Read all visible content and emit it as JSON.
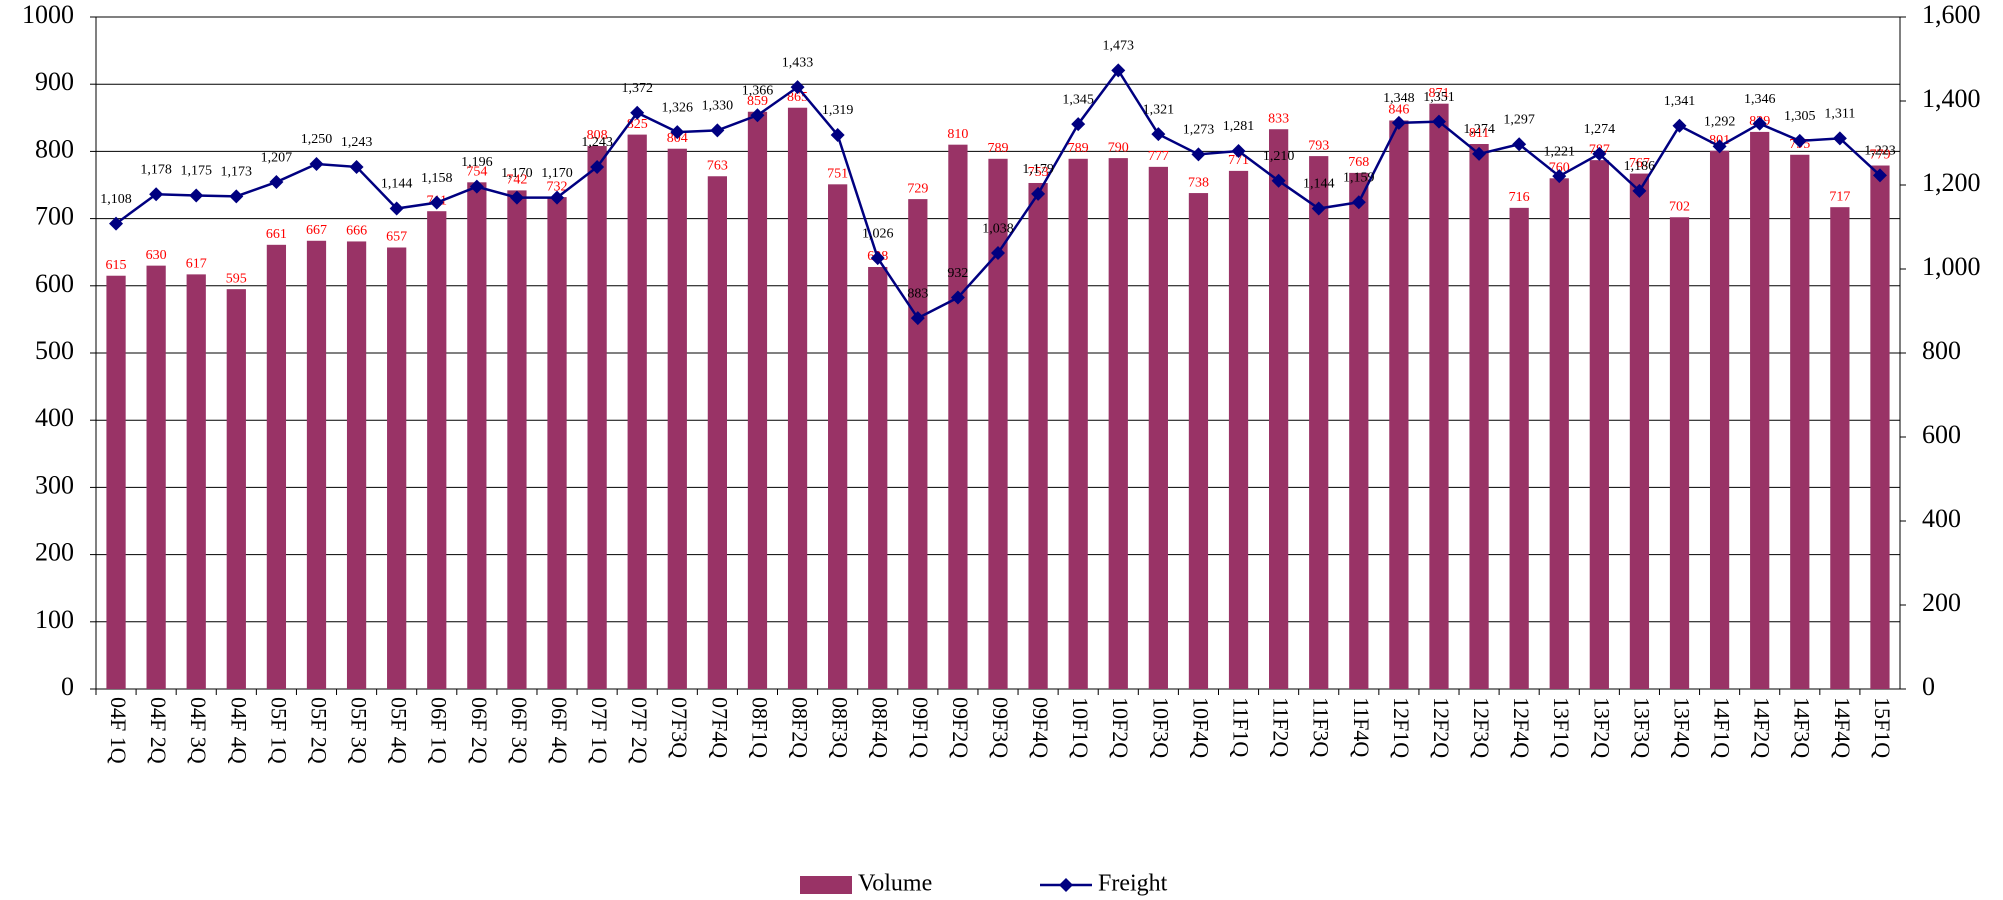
{
  "chart_data": {
    "type": "bar",
    "categories": [
      "04F 1Q",
      "04F 2Q",
      "04F 3Q",
      "04F 4Q",
      "05F 1Q",
      "05F 2Q",
      "05F 3Q",
      "05F 4Q",
      "06F 1Q",
      "06F 2Q",
      "06F 3Q",
      "06F 4Q",
      "07F 1Q",
      "07F 2Q",
      "07F3Q",
      "07F4Q",
      "08F1Q",
      "08F2Q",
      "08F3Q",
      "08F4Q",
      "09F1Q",
      "09F2Q",
      "09F3Q",
      "09F4Q",
      "10F1Q",
      "10F2Q",
      "10F3Q",
      "10F4Q",
      "11F1Q",
      "11F2Q",
      "11F3Q",
      "11F4Q",
      "12F1Q",
      "12F2Q",
      "12F3Q",
      "12F4Q",
      "13F1Q",
      "13F2Q",
      "13F3Q",
      "13F4Q",
      "14F1Q",
      "14F2Q",
      "14F3Q",
      "14F4Q",
      "15F1Q"
    ],
    "series": [
      {
        "name": "Volume",
        "type": "bar",
        "color": "#993366",
        "label_color": "#ff0000",
        "values": [
          615,
          630,
          617,
          595,
          661,
          667,
          666,
          657,
          711,
          754,
          742,
          732,
          808,
          825,
          804,
          763,
          859,
          865,
          751,
          628,
          729,
          810,
          789,
          753,
          789,
          790,
          777,
          738,
          771,
          833,
          793,
          768,
          846,
          871,
          811,
          716,
          760,
          787,
          767,
          702,
          801,
          829,
          795,
          717,
          779
        ]
      },
      {
        "name": "Freight",
        "type": "line",
        "axis": "y2",
        "color": "#000080",
        "label_color": "#000000",
        "values": [
          1108,
          1178,
          1175,
          1173,
          1207,
          1250,
          1243,
          1144,
          1158,
          1196,
          1170,
          1170,
          1243,
          1372,
          1326,
          1330,
          1366,
          1433,
          1319,
          1026,
          883,
          932,
          1038,
          1179,
          1345,
          1473,
          1321,
          1273,
          1281,
          1210,
          1144,
          1159,
          1348,
          1351,
          1274,
          1297,
          1221,
          1274,
          1186,
          1341,
          1292,
          1346,
          1305,
          1311,
          1223
        ],
        "value_labels": [
          "1,108",
          "1,178",
          "1,175",
          "1,173",
          "1,207",
          "1,250",
          "1,243",
          "1,144",
          "1,158",
          "1,196",
          "1,170",
          "1,170",
          "1,243",
          "1,372",
          "1,326",
          "1,330",
          "1,366",
          "1,433",
          "1,319",
          "1,026",
          "883",
          "932",
          "1,038",
          "1,179",
          "1,345",
          "1,473",
          "1,321",
          "1,273",
          "1,281",
          "1,210",
          "1,144",
          "1,159",
          "1,348",
          "1,351",
          "1,274",
          "1,297",
          "1,221",
          "1,274",
          "1,186",
          "1,341",
          "1,292",
          "1,346",
          "1,305",
          "1,311",
          "1,223"
        ]
      }
    ],
    "ylim": [
      0,
      1000
    ],
    "yticks": [
      0,
      100,
      200,
      300,
      400,
      500,
      600,
      700,
      800,
      900,
      1000
    ],
    "y2lim": [
      0,
      1600
    ],
    "y2ticks": [
      0,
      200,
      400,
      600,
      800,
      {
        "value": 1000,
        "label": "1,000"
      },
      {
        "value": 1200,
        "label": "1,200"
      },
      {
        "value": 1400,
        "label": "1,400"
      },
      {
        "value": 1600,
        "label": "1,600"
      }
    ],
    "grid": true,
    "legend": "bottom"
  }
}
